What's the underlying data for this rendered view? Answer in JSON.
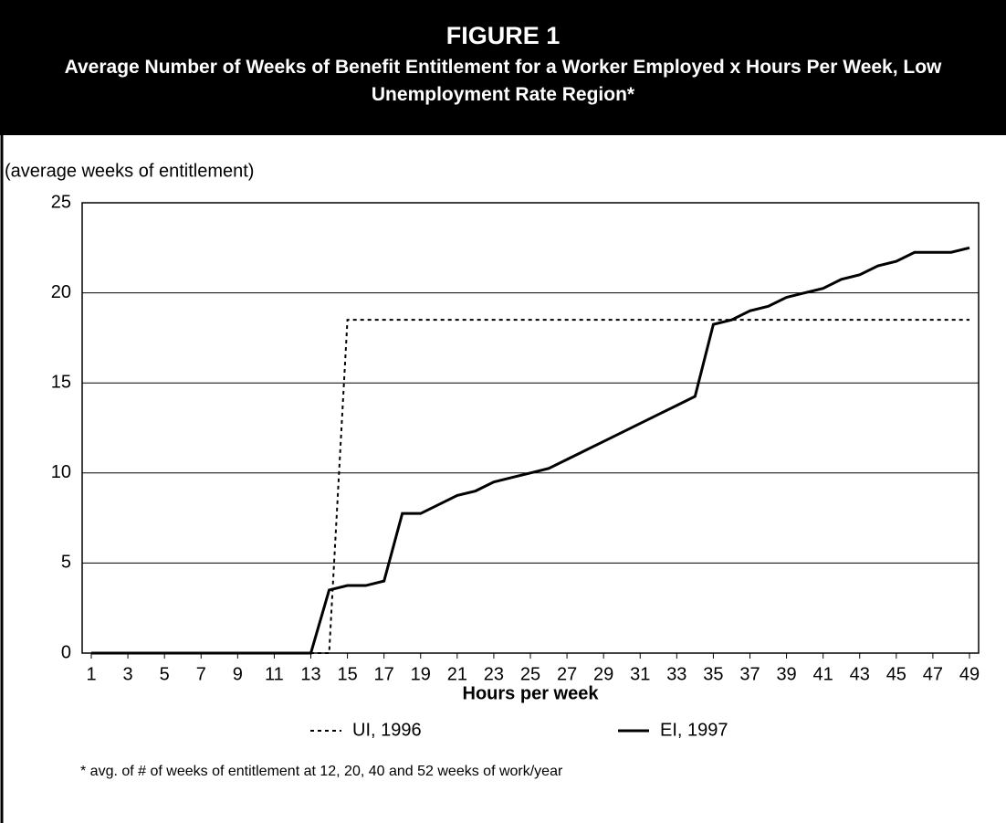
{
  "chart_data": {
    "type": "line",
    "title": "FIGURE 1",
    "subtitle": "Average Number of Weeks of Benefit Entitlement for a Worker Employed x Hours Per Week, Low Unemployment Rate Region*",
    "ylabel": "(average weeks of entitlement)",
    "xlabel": "Hours per week",
    "note": "* avg. of # of weeks of entitlement at 12, 20, 40 and 52 weeks of work/year",
    "x": [
      1,
      2,
      3,
      4,
      5,
      6,
      7,
      8,
      9,
      10,
      11,
      12,
      13,
      14,
      15,
      16,
      17,
      18,
      19,
      20,
      21,
      22,
      23,
      24,
      25,
      26,
      27,
      28,
      29,
      30,
      31,
      32,
      33,
      34,
      35,
      36,
      37,
      38,
      39,
      40,
      41,
      42,
      43,
      44,
      45,
      46,
      47,
      48,
      49
    ],
    "series": [
      {
        "name": "UI, 1996",
        "color": "#000000",
        "style": "dotted",
        "values": [
          0,
          0,
          0,
          0,
          0,
          0,
          0,
          0,
          0,
          0,
          0,
          0,
          0,
          0,
          18.5,
          18.5,
          18.5,
          18.5,
          18.5,
          18.5,
          18.5,
          18.5,
          18.5,
          18.5,
          18.5,
          18.5,
          18.5,
          18.5,
          18.5,
          18.5,
          18.5,
          18.5,
          18.5,
          18.5,
          18.5,
          18.5,
          18.5,
          18.5,
          18.5,
          18.5,
          18.5,
          18.5,
          18.5,
          18.5,
          18.5,
          18.5,
          18.5,
          18.5,
          18.5
        ]
      },
      {
        "name": "EI, 1997",
        "color": "#000000",
        "style": "solid",
        "values": [
          0,
          0,
          0,
          0,
          0,
          0,
          0,
          0,
          0,
          0,
          0,
          0,
          0,
          3.5,
          3.75,
          3.75,
          4.0,
          7.75,
          7.75,
          8.25,
          8.75,
          9.0,
          9.5,
          9.75,
          10.0,
          10.25,
          10.75,
          11.25,
          11.75,
          12.25,
          12.75,
          13.25,
          13.75,
          14.25,
          18.25,
          18.5,
          19.0,
          19.25,
          19.75,
          20.0,
          20.25,
          20.75,
          21.0,
          21.5,
          21.75,
          22.25,
          22.25,
          22.25,
          22.5
        ]
      }
    ],
    "xlim": [
      0.5,
      49.5
    ],
    "xticks": [
      1,
      3,
      5,
      7,
      9,
      11,
      13,
      15,
      17,
      19,
      21,
      23,
      25,
      27,
      29,
      31,
      33,
      35,
      37,
      39,
      41,
      43,
      45,
      47,
      49
    ],
    "ylim": [
      0,
      25
    ],
    "yticks": [
      0,
      5,
      10,
      15,
      20,
      25
    ],
    "grid": true
  }
}
